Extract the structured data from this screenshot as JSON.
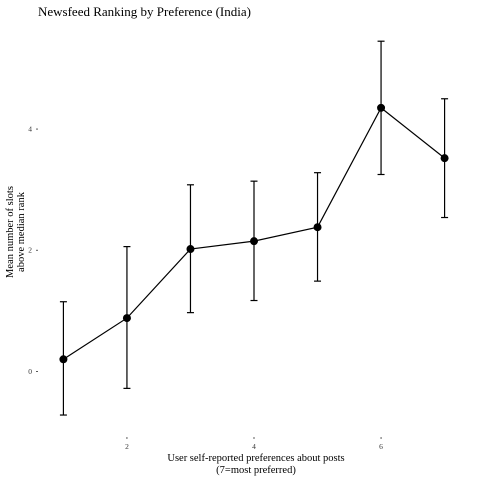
{
  "chart_data": {
    "type": "line",
    "title": "Newsfeed Ranking by Preference (India)",
    "xlabel_lines": [
      "User self-reported preferences about posts",
      "(7=most preferred)"
    ],
    "ylabel_lines": [
      "Mean number of slots",
      "above median rank"
    ],
    "x_ticks": [
      2,
      4,
      6
    ],
    "y_ticks": [
      0,
      2,
      4
    ],
    "xlim": [
      0.6,
      7.4
    ],
    "ylim": [
      -1.0,
      5.8
    ],
    "grid": false,
    "legend": "none",
    "series": [
      {
        "x": [
          1,
          2,
          3,
          4,
          5,
          6,
          7
        ],
        "y": [
          0.2,
          0.88,
          2.02,
          2.15,
          2.38,
          4.35,
          3.52
        ],
        "lower": [
          -0.72,
          -0.28,
          0.97,
          1.17,
          1.49,
          3.25,
          2.54
        ],
        "upper": [
          1.15,
          2.06,
          3.08,
          3.14,
          3.28,
          5.45,
          4.5
        ],
        "color": "#000000"
      }
    ]
  }
}
